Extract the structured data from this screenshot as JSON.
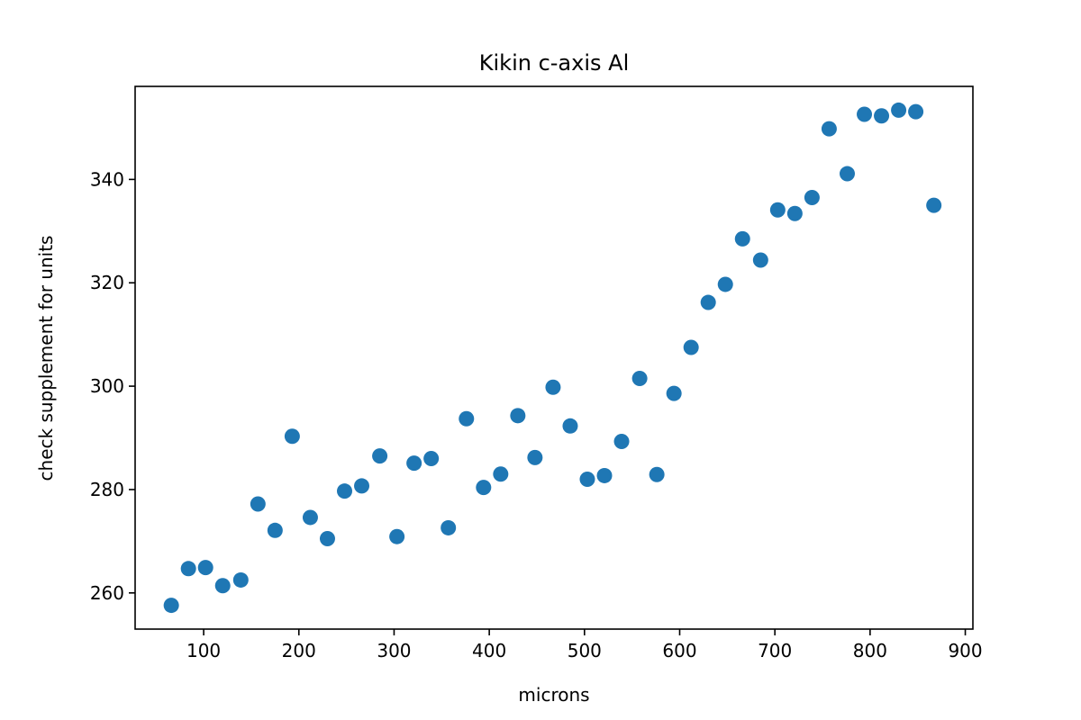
{
  "chart_data": {
    "type": "scatter",
    "title": "Kikin c-axis Al",
    "xlabel": "microns",
    "ylabel": "check supplement for units",
    "xlim": [
      28,
      908
    ],
    "ylim": [
      253,
      358
    ],
    "xticks": [
      100,
      200,
      300,
      400,
      500,
      600,
      700,
      800,
      900
    ],
    "yticks": [
      260,
      280,
      300,
      320,
      340
    ],
    "grid": false,
    "marker_color": "#1f77b4",
    "series": [
      {
        "points": [
          [
            66,
            257.6
          ],
          [
            84,
            264.7
          ],
          [
            102,
            264.9
          ],
          [
            120,
            261.4
          ],
          [
            139,
            262.5
          ],
          [
            157,
            277.2
          ],
          [
            175,
            272.1
          ],
          [
            193,
            290.3
          ],
          [
            212,
            274.6
          ],
          [
            230,
            270.5
          ],
          [
            248,
            279.7
          ],
          [
            266,
            280.7
          ],
          [
            285,
            286.5
          ],
          [
            303,
            270.9
          ],
          [
            321,
            285.1
          ],
          [
            339,
            286.0
          ],
          [
            357,
            272.6
          ],
          [
            376,
            293.7
          ],
          [
            394,
            280.4
          ],
          [
            412,
            283.0
          ],
          [
            430,
            294.3
          ],
          [
            448,
            286.2
          ],
          [
            467,
            299.8
          ],
          [
            485,
            292.3
          ],
          [
            503,
            282.0
          ],
          [
            521,
            282.7
          ],
          [
            539,
            289.3
          ],
          [
            558,
            301.5
          ],
          [
            576,
            282.9
          ],
          [
            594,
            298.6
          ],
          [
            612,
            307.5
          ],
          [
            630,
            316.2
          ],
          [
            648,
            319.7
          ],
          [
            666,
            328.5
          ],
          [
            685,
            324.4
          ],
          [
            703,
            334.1
          ],
          [
            721,
            333.4
          ],
          [
            739,
            336.5
          ],
          [
            757,
            349.8
          ],
          [
            776,
            341.1
          ],
          [
            794,
            352.6
          ],
          [
            812,
            352.3
          ],
          [
            830,
            353.4
          ],
          [
            848,
            353.1
          ],
          [
            867,
            335.0
          ]
        ]
      }
    ]
  }
}
